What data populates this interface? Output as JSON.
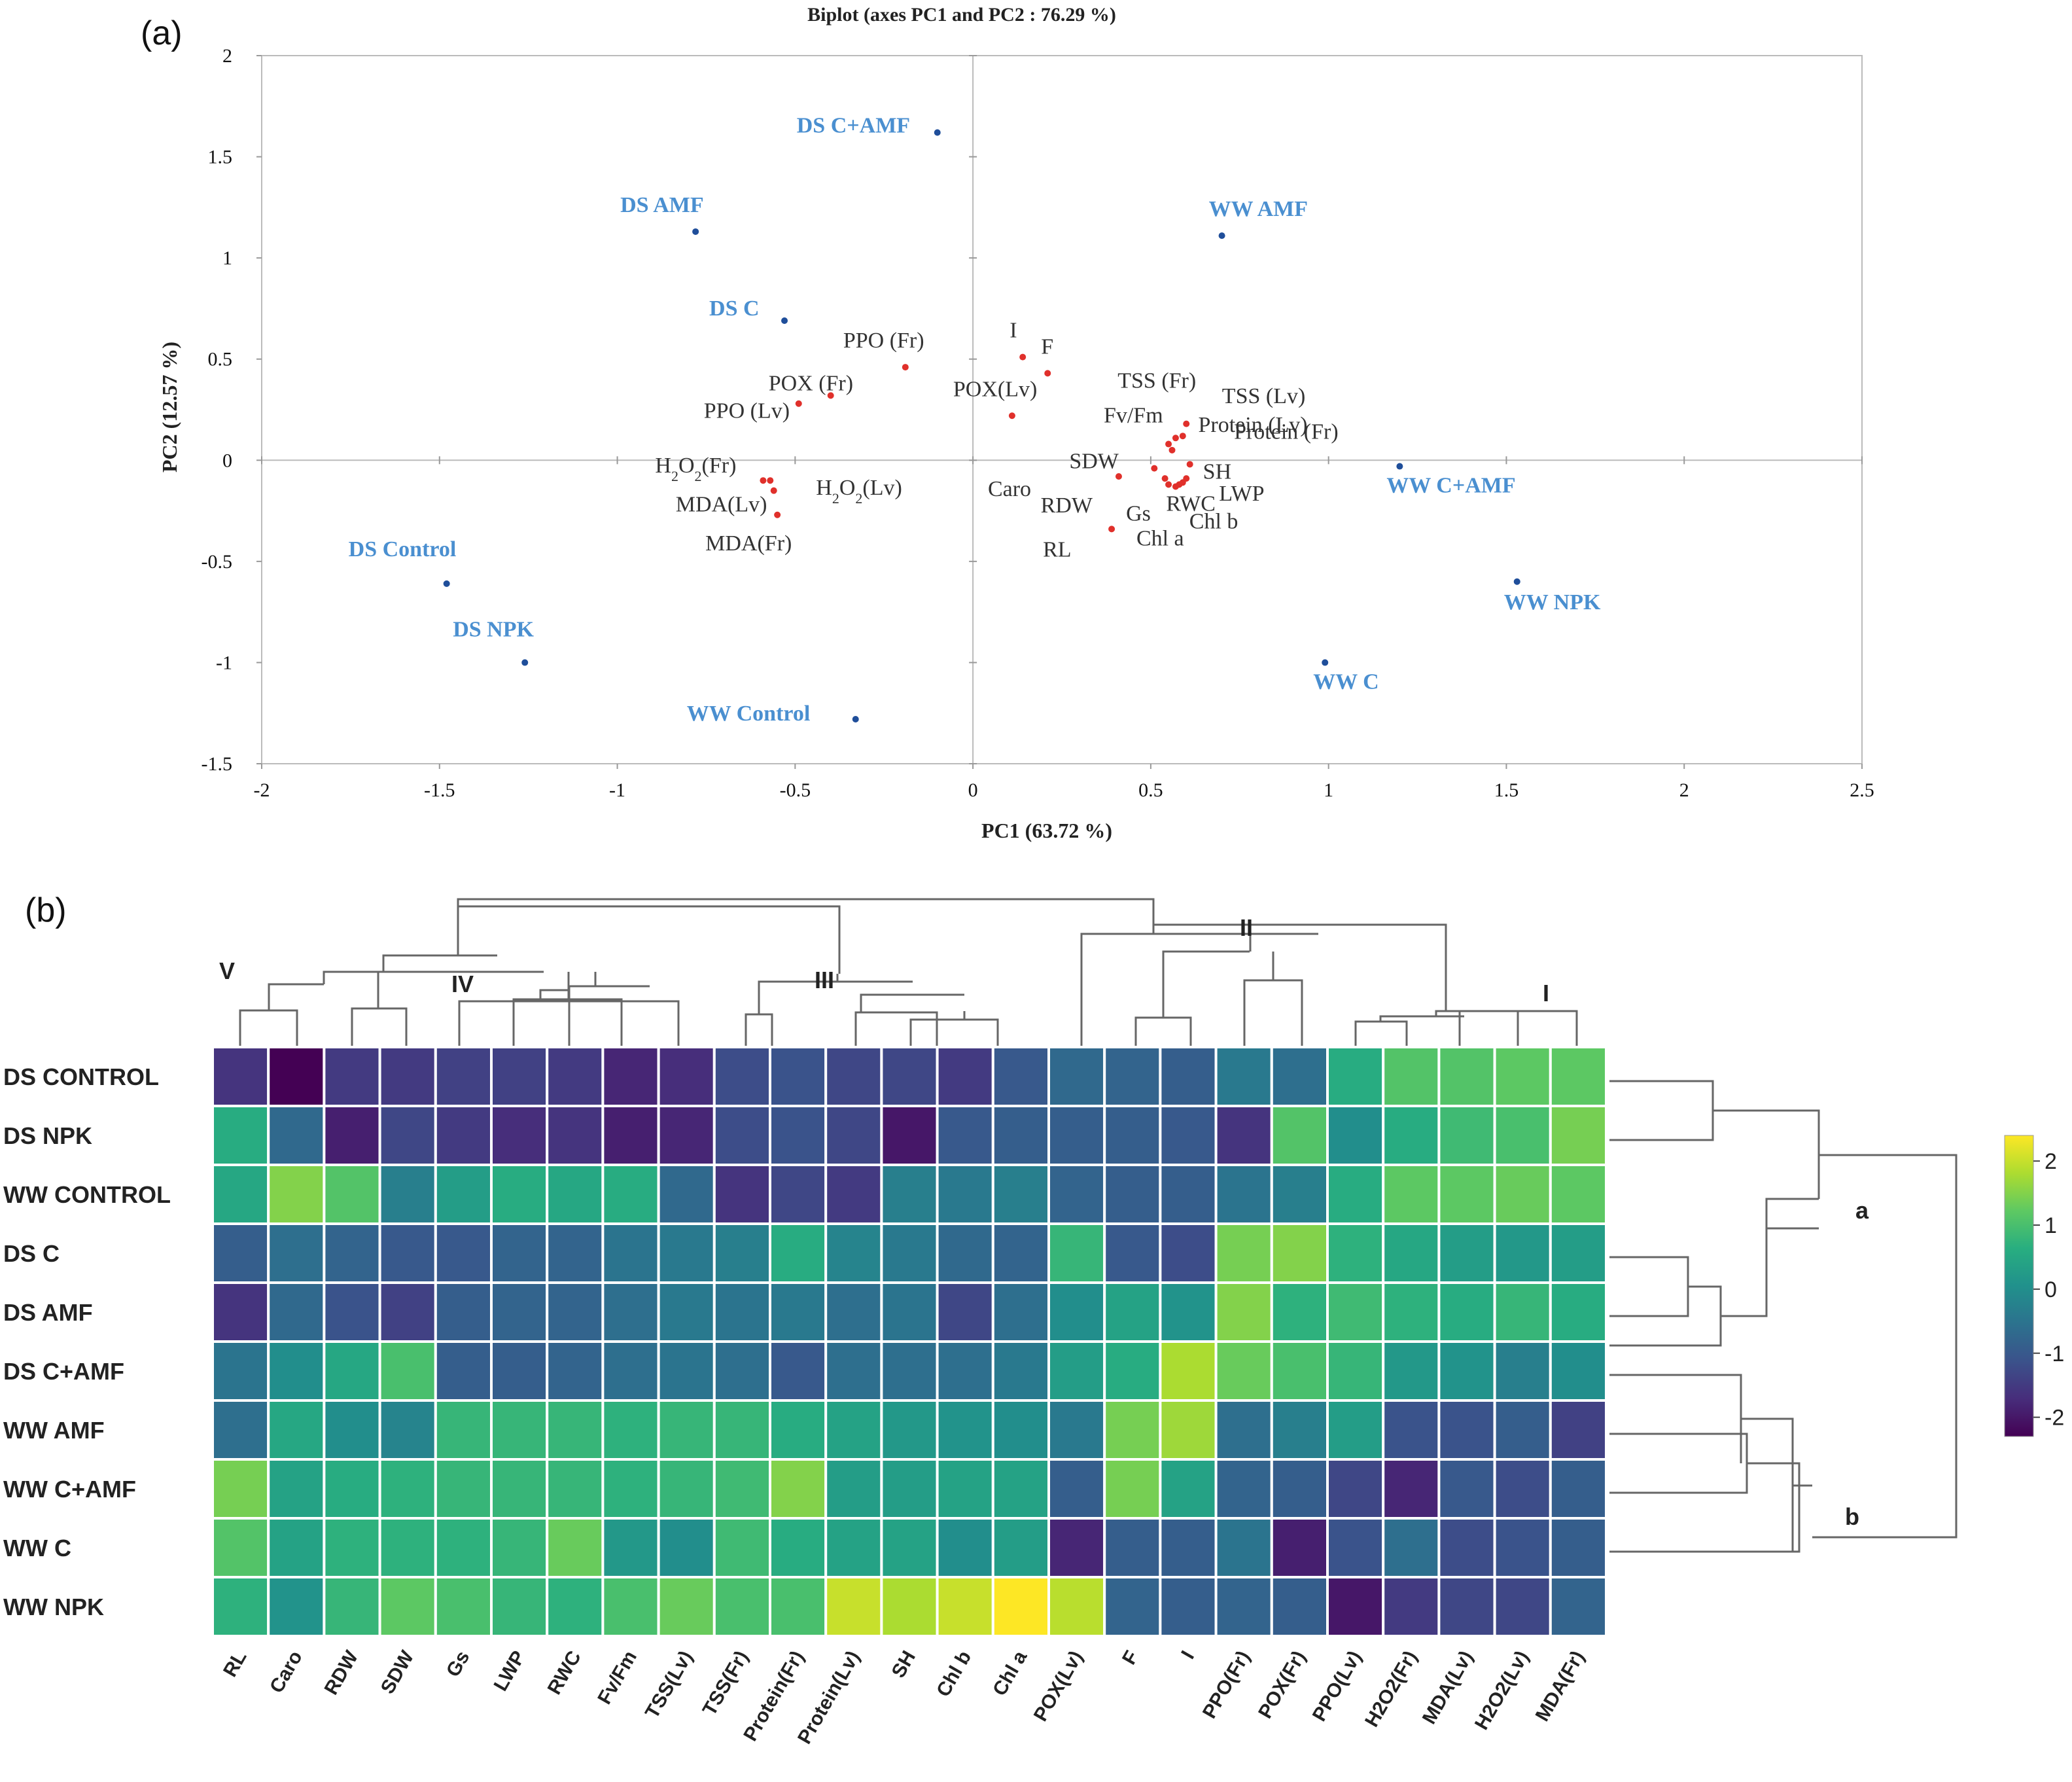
{
  "panel_a_label": "(a)",
  "panel_b_label": "(b)",
  "chart_data": [
    {
      "type": "scatter",
      "title": "Biplot (axes PC1 and PC2 : 76.29 %)",
      "xlabel": "PC1 (63.72 %)",
      "ylabel": "PC2 (12.57 %)",
      "xlim": [
        -2,
        2.5
      ],
      "ylim": [
        -1.5,
        2
      ],
      "xticks": [
        "-2",
        "-1.5",
        "-1",
        "-0.5",
        "0",
        "0.5",
        "1",
        "1.5",
        "2",
        "2.5"
      ],
      "yticks": [
        "-1.5",
        "-1",
        "-0.5",
        "0",
        "0.5",
        "1",
        "1.5",
        "2"
      ],
      "observations": [
        {
          "name": "DS C+AMF",
          "x": -0.1,
          "y": 1.62
        },
        {
          "name": "DS AMF",
          "x": -0.78,
          "y": 1.13
        },
        {
          "name": "DS C",
          "x": -0.53,
          "y": 0.69
        },
        {
          "name": "DS Control",
          "x": -1.48,
          "y": -0.61
        },
        {
          "name": "DS NPK",
          "x": -1.26,
          "y": -1.0
        },
        {
          "name": "WW Control",
          "x": -0.33,
          "y": -1.28
        },
        {
          "name": "WW AMF",
          "x": 0.7,
          "y": 1.11
        },
        {
          "name": "WW C+AMF",
          "x": 1.2,
          "y": -0.03
        },
        {
          "name": "WW NPK",
          "x": 1.53,
          "y": -0.6
        },
        {
          "name": "WW C",
          "x": 0.99,
          "y": -1.0
        }
      ],
      "variables": [
        {
          "name": "I",
          "x": 0.14,
          "y": 0.51
        },
        {
          "name": "F",
          "x": 0.21,
          "y": 0.43
        },
        {
          "name": "POX(Lv)",
          "x": 0.11,
          "y": 0.22
        },
        {
          "name": "PPO (Fr)",
          "x": -0.19,
          "y": 0.46
        },
        {
          "name": "POX (Fr)",
          "x": -0.4,
          "y": 0.32
        },
        {
          "name": "PPO (Lv)",
          "x": -0.49,
          "y": 0.28
        },
        {
          "name": "H2O2(Fr)",
          "x": -0.59,
          "y": -0.1
        },
        {
          "name": "H2O2(Lv)",
          "x": -0.57,
          "y": -0.1
        },
        {
          "name": "MDA(Lv)",
          "x": -0.56,
          "y": -0.15
        },
        {
          "name": "MDA(Fr)",
          "x": -0.55,
          "y": -0.27
        },
        {
          "name": "TSS (Fr)",
          "x": 0.6,
          "y": 0.18
        },
        {
          "name": "TSS (Lv)",
          "x": 0.59,
          "y": 0.12
        },
        {
          "name": "Fv/Fm",
          "x": 0.57,
          "y": 0.11
        },
        {
          "name": "Protein (Fr)",
          "x": 0.55,
          "y": 0.08
        },
        {
          "name": "Protein (Lv)",
          "x": 0.56,
          "y": 0.05
        },
        {
          "name": "SDW",
          "x": 0.51,
          "y": -0.04
        },
        {
          "name": "SH",
          "x": 0.61,
          "y": -0.02
        },
        {
          "name": "Caro",
          "x": 0.41,
          "y": -0.08
        },
        {
          "name": "LWP",
          "x": 0.6,
          "y": -0.09
        },
        {
          "name": "RWC",
          "x": 0.58,
          "y": -0.12
        },
        {
          "name": "Gs",
          "x": 0.55,
          "y": -0.12
        },
        {
          "name": "Chl a",
          "x": 0.57,
          "y": -0.13
        },
        {
          "name": "Chl b",
          "x": 0.59,
          "y": -0.11
        },
        {
          "name": "RDW",
          "x": 0.54,
          "y": -0.09
        },
        {
          "name": "RL",
          "x": 0.39,
          "y": -0.34
        }
      ]
    },
    {
      "type": "heatmap",
      "rows": [
        "DS CONTROL",
        "DS NPK",
        "WW CONTROL",
        "DS C",
        "DS AMF",
        "DS C+AMF",
        "WW AMF",
        "WW C+AMF",
        "WW C",
        "WW NPK"
      ],
      "columns": [
        "RL",
        "Caro",
        "RDW",
        "SDW",
        "Gs",
        "LWP",
        "RWC",
        "Fv/Fm",
        "TSS(Lv)",
        "TSS(Fr)",
        "Protein(Fr)",
        "Protein(Lv)",
        "SH",
        "Chl b",
        "Chl a",
        "POX(Lv)",
        "F",
        "I",
        "PPO(Fr)",
        "POX(Fr)",
        "PPO(Lv)",
        "H2O2(Fr)",
        "MDA(Lv)",
        "H2O2(Lv)",
        "MDA(Fr)"
      ],
      "values": [
        [
          -1.6,
          -2.3,
          -1.5,
          -1.5,
          -1.4,
          -1.4,
          -1.5,
          -1.8,
          -1.7,
          -1.2,
          -1.1,
          -1.3,
          -1.3,
          -1.5,
          -1.0,
          -0.7,
          -0.8,
          -0.9,
          -0.4,
          -0.6,
          0.6,
          1.1,
          1.1,
          1.2,
          1.2
        ],
        [
          0.6,
          -0.7,
          -1.9,
          -1.3,
          -1.5,
          -1.7,
          -1.6,
          -1.9,
          -1.8,
          -1.2,
          -1.1,
          -1.3,
          -2.0,
          -1.0,
          -0.9,
          -0.9,
          -0.9,
          -1.0,
          -1.6,
          1.1,
          0.0,
          0.6,
          0.9,
          1.0,
          1.4
        ],
        [
          0.5,
          1.5,
          1.1,
          -0.3,
          0.3,
          0.6,
          0.5,
          0.6,
          -0.7,
          -1.6,
          -1.3,
          -1.5,
          -0.3,
          -0.4,
          -0.3,
          -0.8,
          -0.9,
          -0.9,
          -0.5,
          -0.3,
          0.6,
          1.2,
          1.2,
          1.3,
          1.2
        ],
        [
          -0.9,
          -0.6,
          -0.8,
          -1.0,
          -1.0,
          -0.8,
          -0.8,
          -0.5,
          -0.4,
          -0.3,
          0.6,
          -0.2,
          -0.4,
          -0.7,
          -0.8,
          0.8,
          -1.0,
          -1.2,
          1.4,
          1.5,
          0.7,
          0.5,
          0.3,
          0.2,
          0.3
        ],
        [
          -1.6,
          -0.7,
          -1.1,
          -1.4,
          -0.9,
          -0.8,
          -0.8,
          -0.6,
          -0.4,
          -0.5,
          -0.4,
          -0.6,
          -0.5,
          -1.3,
          -0.6,
          0.0,
          0.4,
          0.1,
          1.5,
          0.7,
          0.9,
          0.7,
          0.6,
          0.8,
          0.6
        ],
        [
          -0.5,
          0.0,
          0.5,
          1.0,
          -0.9,
          -0.9,
          -0.8,
          -0.6,
          -0.5,
          -0.6,
          -1.0,
          -0.6,
          -0.6,
          -0.6,
          -0.4,
          0.3,
          0.6,
          1.8,
          1.3,
          1.0,
          0.8,
          0.2,
          0.1,
          -0.3,
          0.0
        ],
        [
          -0.6,
          0.5,
          0.0,
          -0.2,
          0.8,
          0.8,
          0.8,
          0.7,
          0.8,
          0.8,
          0.6,
          0.4,
          0.2,
          0.1,
          0.0,
          -0.4,
          1.4,
          1.7,
          -0.6,
          -0.3,
          0.3,
          -1.1,
          -1.1,
          -0.9,
          -1.4
        ],
        [
          1.4,
          0.4,
          0.6,
          0.7,
          0.8,
          0.8,
          0.8,
          0.7,
          0.8,
          0.9,
          1.5,
          0.3,
          0.3,
          0.4,
          0.4,
          -0.9,
          1.4,
          0.4,
          -0.8,
          -0.9,
          -1.3,
          -1.8,
          -1.0,
          -1.2,
          -0.9
        ],
        [
          1.1,
          0.4,
          0.7,
          0.7,
          0.7,
          0.8,
          1.3,
          0.2,
          0.0,
          0.9,
          0.6,
          0.4,
          0.4,
          0.0,
          0.3,
          -1.8,
          -0.9,
          -0.9,
          -0.5,
          -1.9,
          -1.1,
          -0.6,
          -1.2,
          -1.1,
          -0.9
        ],
        [
          0.7,
          0.1,
          0.8,
          1.2,
          1.0,
          0.8,
          0.7,
          1.0,
          1.3,
          1.0,
          1.0,
          2.0,
          1.8,
          2.0,
          2.4,
          1.9,
          -0.8,
          -0.9,
          -0.8,
          -0.9,
          -2.0,
          -1.5,
          -1.3,
          -1.3,
          -0.8
        ]
      ],
      "colorbar": {
        "min": -2.3,
        "max": 2.4,
        "ticks": [
          "2",
          "1",
          "0",
          "-1",
          "-2"
        ]
      },
      "column_clusters": [
        "V",
        "IV",
        "III",
        "II",
        "I"
      ],
      "row_clusters": [
        "a",
        "b"
      ]
    }
  ]
}
